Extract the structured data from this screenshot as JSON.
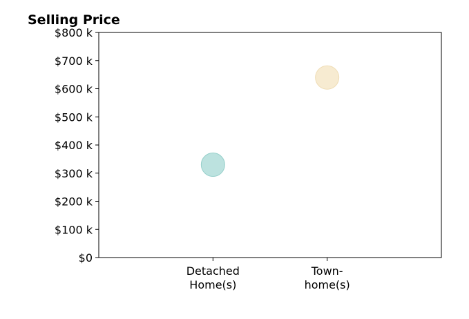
{
  "chart_data": {
    "type": "scatter",
    "title": "Selling Price",
    "categories": [
      "Detached\nHome(s)",
      "Town-\nhome(s)"
    ],
    "y_tick_labels": [
      "$0",
      "$100 k",
      "$200 k",
      "$300 k",
      "$400 k",
      "$500 k",
      "$600 k",
      "$700 k",
      "$800 k"
    ],
    "y_ticks": [
      0,
      100,
      200,
      300,
      400,
      500,
      600,
      700,
      800
    ],
    "ylim": [
      0,
      800
    ],
    "xlabel": "",
    "ylabel": "",
    "grid": false,
    "values": [
      330,
      640
    ],
    "point_colors": [
      "#b0ddd9",
      "#f6e7c9"
    ],
    "point_stroke_colors": [
      "#95cfca",
      "#efdcb4"
    ]
  }
}
